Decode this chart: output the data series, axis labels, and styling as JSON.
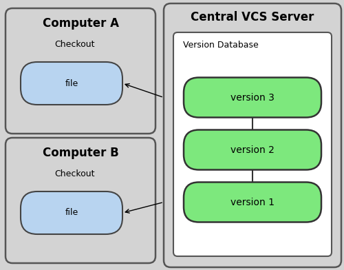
{
  "bg_color": "#d3d3d3",
  "computer_bg": "#d3d3d3",
  "file_fill": "#b8d4f0",
  "file_border": "#444444",
  "version_fill": "#7de87d",
  "version_border": "#333333",
  "vcs_bg": "#d3d3d3",
  "db_bg": "#ffffff",
  "outer_border": "#555555",
  "comp_a_title": "Computer A",
  "comp_b_title": "Computer B",
  "vcs_title": "Central VCS Server",
  "db_title": "Version Database",
  "checkout_label": "Checkout",
  "file_label": "file",
  "versions": [
    "version 3",
    "version 2",
    "version 1"
  ],
  "title_fontsize": 11,
  "label_fontsize": 9,
  "version_fontsize": 10,
  "comp_title_fontsize": 12
}
